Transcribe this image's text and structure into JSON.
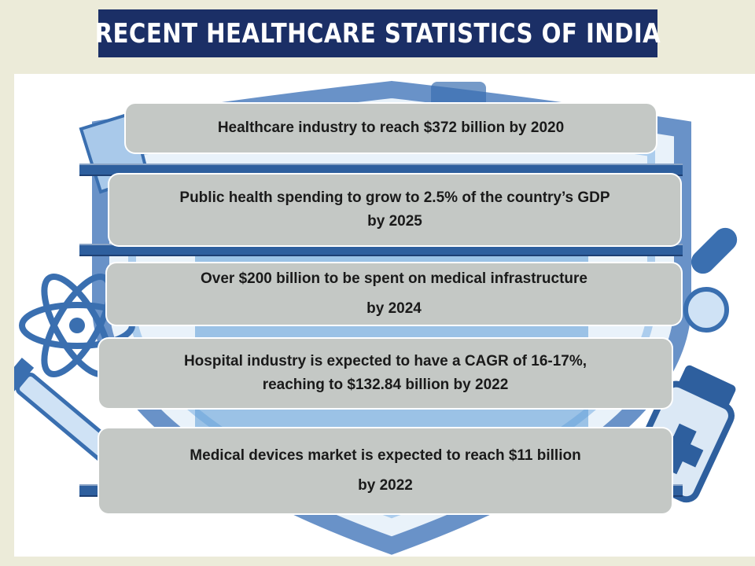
{
  "title": "RECENT HEALTHCARE STATISTICS OF INDIA",
  "colors": {
    "title_bg": "#1b2f66",
    "page_bg": "#ecebd9",
    "card_bg": "#c4c8c5",
    "bar_blue": "#2e5f9e",
    "art_blue": "#5b9bd5"
  },
  "background_icons": [
    "shield-icon",
    "atom-icon",
    "syringe-icon",
    "medicine-bottle-icon",
    "test-tube-icon",
    "pill-bottle-icon"
  ],
  "stats": [
    {
      "lines": [
        "Healthcare industry to reach $372 billion by 2020"
      ]
    },
    {
      "lines": [
        "Public health spending to grow to 2.5% of the country’s GDP",
        "by 2025"
      ]
    },
    {
      "lines": [
        "Over $200 billion to be spent on medical infrastructure",
        "by 2024"
      ]
    },
    {
      "lines": [
        "Hospital industry is expected to have a CAGR of 16-17%,",
        "reaching to $132.84 billion by 2022"
      ]
    },
    {
      "lines": [
        "Medical devices market is expected to reach $11 billion",
        "by 2022"
      ]
    }
  ]
}
